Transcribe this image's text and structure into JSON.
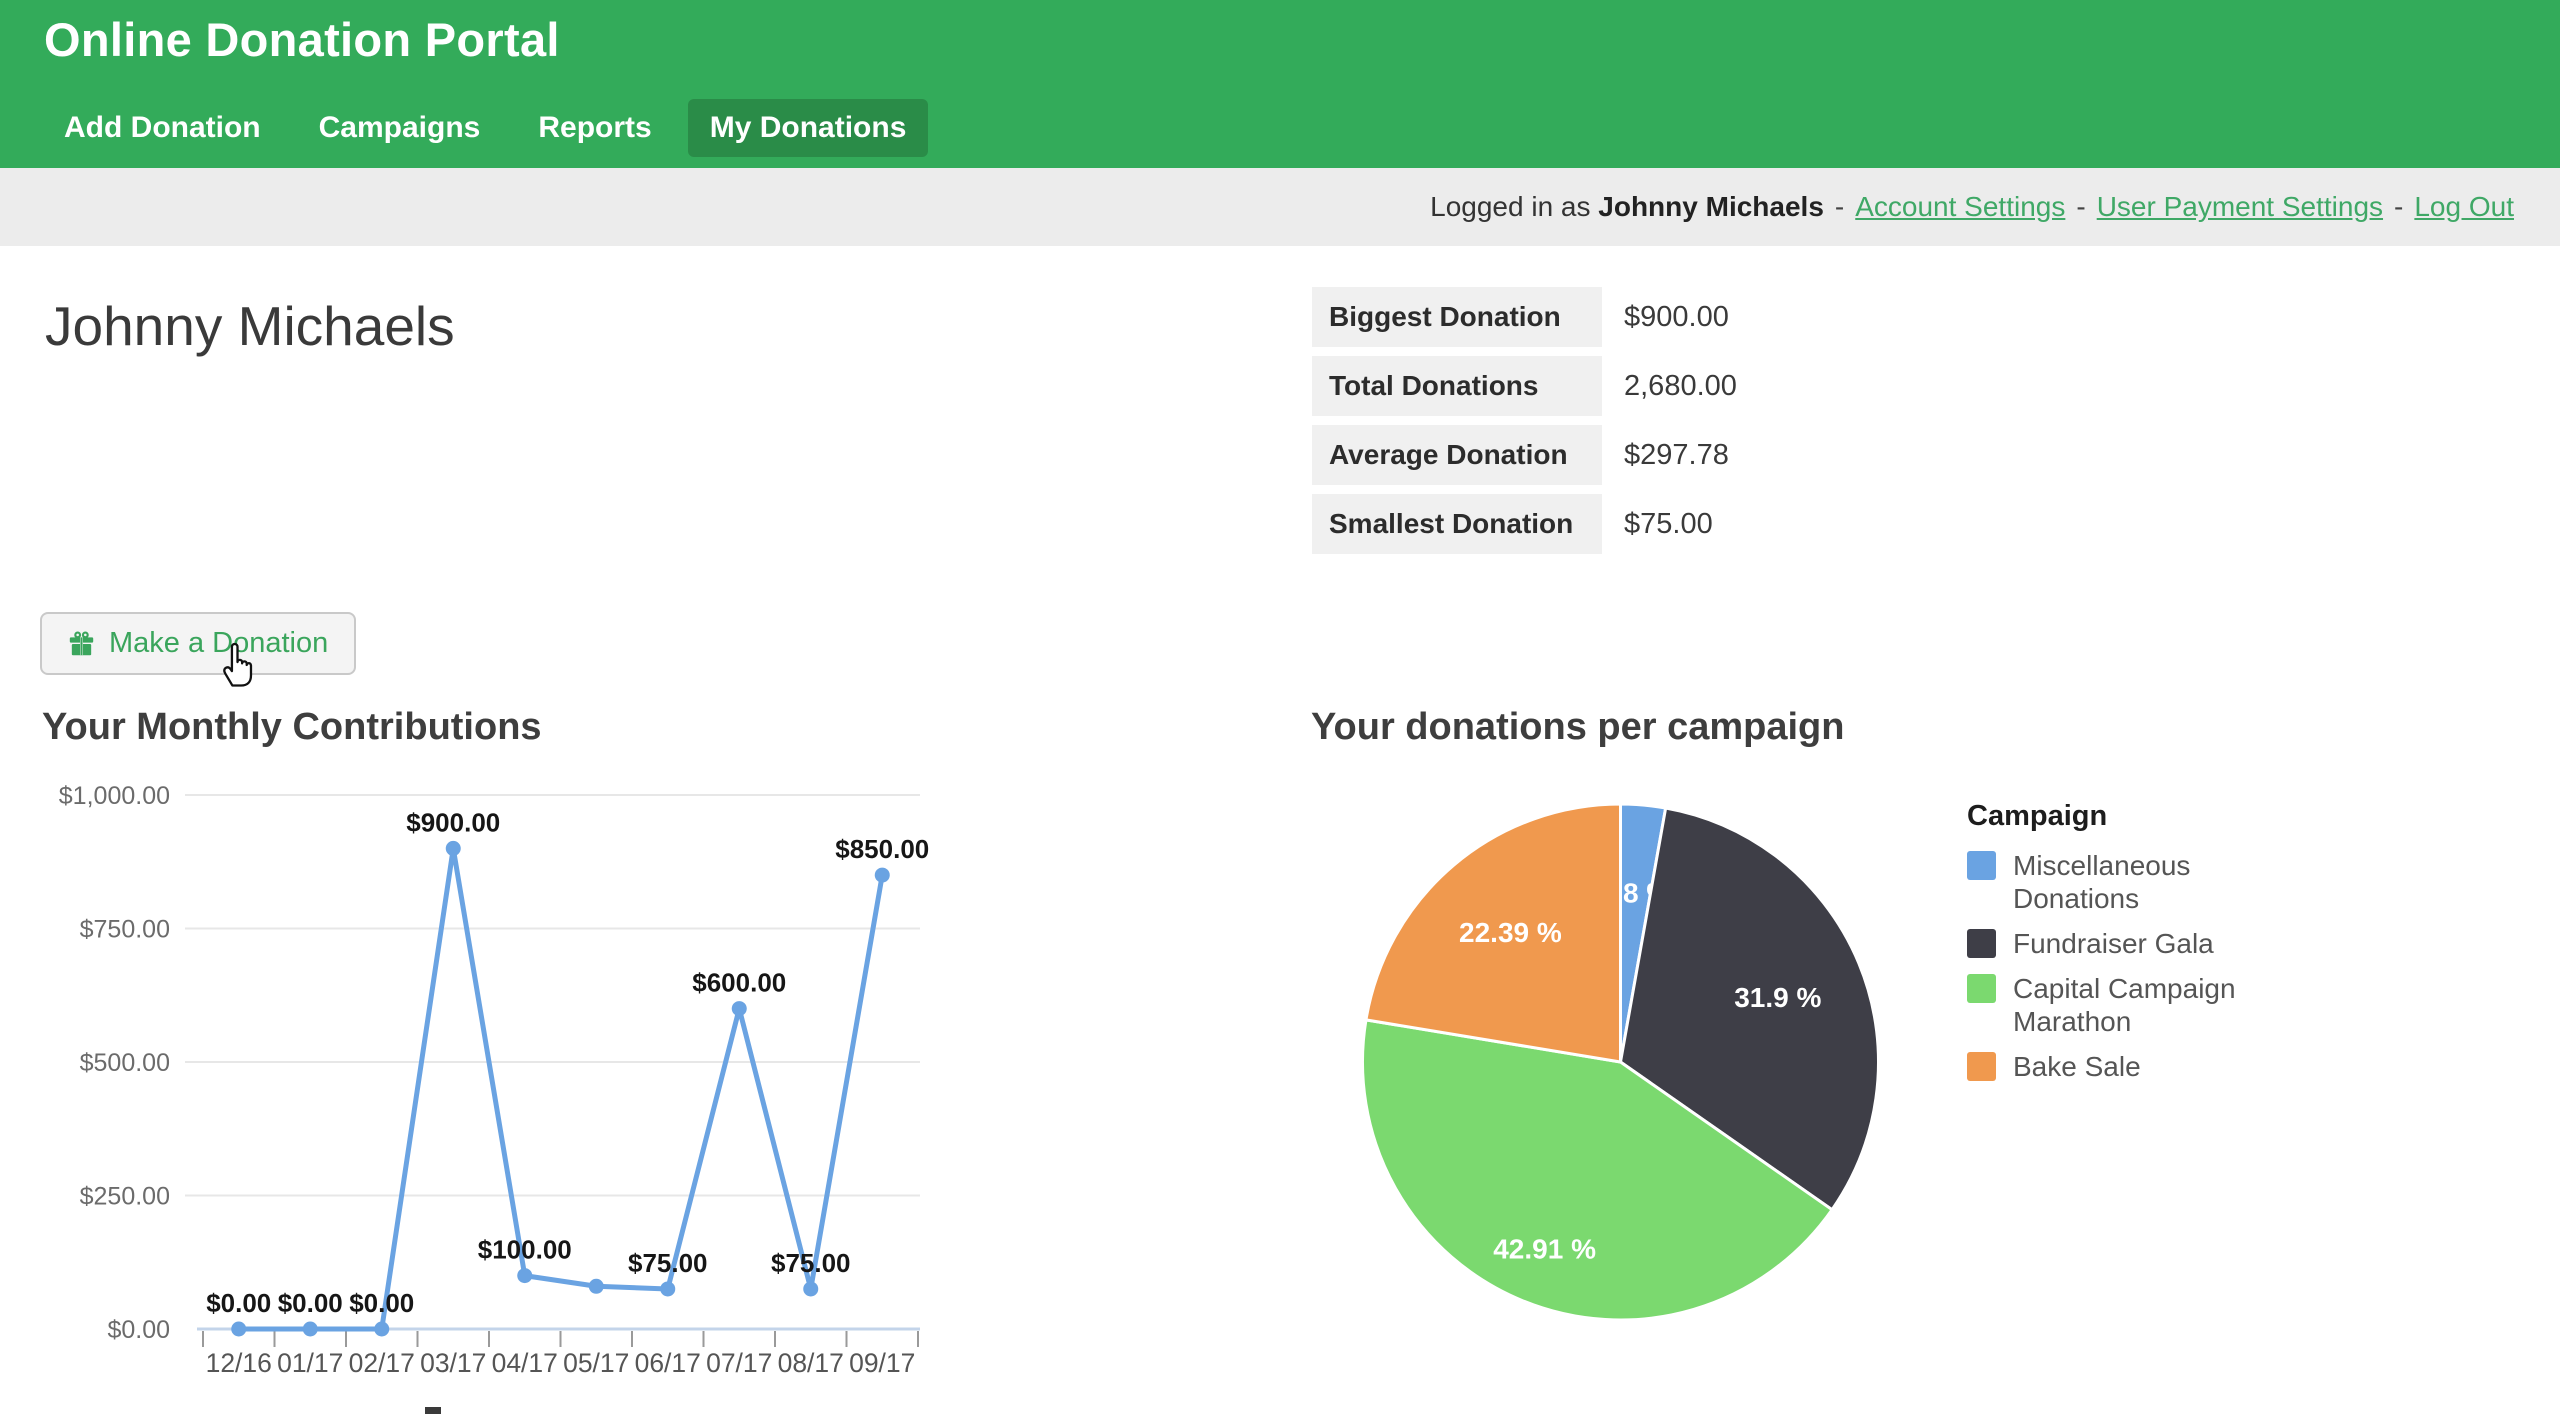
{
  "header": {
    "title": "Online Donation Portal",
    "tabs": [
      {
        "label": "Add Donation",
        "active": false
      },
      {
        "label": "Campaigns",
        "active": false
      },
      {
        "label": "Reports",
        "active": false
      },
      {
        "label": "My Donations",
        "active": true
      }
    ]
  },
  "userbar": {
    "prefix": "Logged in as",
    "username": "Johnny Michaels",
    "separator": "-",
    "links": [
      {
        "label": "Account Settings"
      },
      {
        "label": "User Payment Settings"
      },
      {
        "label": "Log Out"
      }
    ]
  },
  "page": {
    "heading": "Johnny Michaels"
  },
  "stats": {
    "rows": [
      {
        "label": "Biggest Donation",
        "value": "$900.00"
      },
      {
        "label": "Total Donations",
        "value": "2,680.00"
      },
      {
        "label": "Average Donation",
        "value": "$297.78"
      },
      {
        "label": "Smallest Donation",
        "value": "$75.00"
      }
    ]
  },
  "donate_button": {
    "label": "Make a Donation",
    "icon": "gift-icon"
  },
  "colors": {
    "brand_green": "#33ab5a",
    "active_tab_green": "#2a8c48",
    "link_green": "#3fa866",
    "line_blue": "#6aa3e2"
  },
  "chart_data": [
    {
      "type": "line",
      "title": "Your Monthly Contributions",
      "categories": [
        "12/16",
        "01/17",
        "02/17",
        "03/17",
        "04/17",
        "05/17",
        "06/17",
        "07/17",
        "08/17",
        "09/17"
      ],
      "values": [
        0,
        0,
        0,
        900,
        100,
        80,
        75,
        600,
        75,
        850
      ],
      "point_labels": [
        "$0.00",
        "$0.00",
        "$0.00",
        "$900.00",
        "$100.00",
        null,
        "$75.00",
        "$600.00",
        "$75.00",
        "$850.00"
      ],
      "yticks": [
        {
          "label": "$1,000.00",
          "value": 1000
        },
        {
          "label": "$750.00",
          "value": 750
        },
        {
          "label": "$500.00",
          "value": 500
        },
        {
          "label": "$250.00",
          "value": 250
        },
        {
          "label": "$0.00",
          "value": 0
        }
      ],
      "ylim": [
        0,
        1000
      ],
      "grid": true,
      "line_color": "#6aa3e2"
    },
    {
      "type": "pie",
      "title": "Your donations per campaign",
      "legend_title": "Campaign",
      "legend_position": "right",
      "slices": [
        {
          "label": "Miscellaneous Donations",
          "percent": 2.8,
          "display": "2.8 %",
          "color": "#6aa3e2"
        },
        {
          "label": "Fundraiser Gala",
          "percent": 31.9,
          "display": "31.9 %",
          "color": "#3e3e47"
        },
        {
          "label": "Capital Campaign Marathon",
          "percent": 42.91,
          "display": "42.91 %",
          "color": "#7bd96f"
        },
        {
          "label": "Bake Sale",
          "percent": 22.39,
          "display": "22.39 %",
          "color": "#f0994e"
        }
      ]
    }
  ]
}
